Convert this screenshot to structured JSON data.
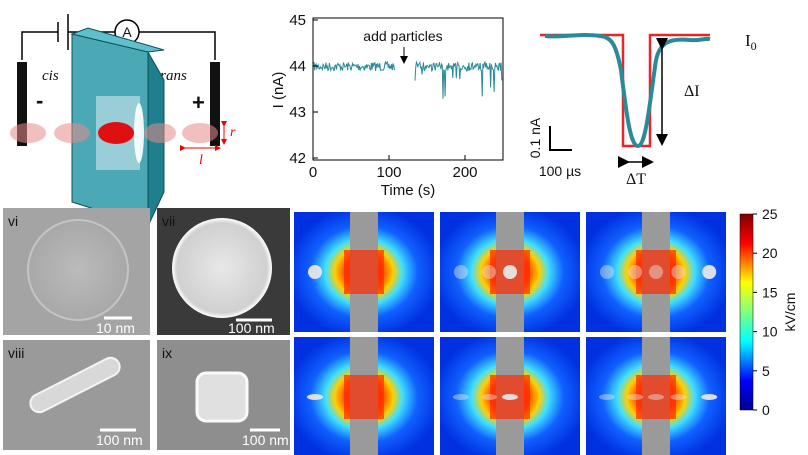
{
  "schematic": {
    "ammeter": "A",
    "cis": "cis",
    "trans": "trans",
    "minus": "-",
    "plus": "+",
    "r": "r",
    "l": "l"
  },
  "trace_plot": {
    "ylabel": "I (nA)",
    "xlabel": "Time (s)",
    "annotation": "add particles",
    "yticks": [
      "45",
      "44",
      "43",
      "42"
    ],
    "xticks": [
      "0",
      "100",
      "200"
    ]
  },
  "pulse": {
    "baseline": {
      "main": "I",
      "sub": "0"
    },
    "delta_i": "ΔI",
    "delta_t": "ΔT",
    "scale_y": "0.1 nA",
    "scale_x": "100 µs"
  },
  "micrographs": [
    {
      "label": "vi",
      "scale": "10 nm"
    },
    {
      "label": "vii",
      "scale": "100 nm"
    },
    {
      "label": "viii",
      "scale": "100 nm"
    },
    {
      "label": "ix",
      "scale": "100 nm"
    }
  ],
  "colorbar": {
    "label": "kV/cm",
    "ticks": [
      "25",
      "20",
      "15",
      "10",
      "5",
      "0"
    ]
  }
}
